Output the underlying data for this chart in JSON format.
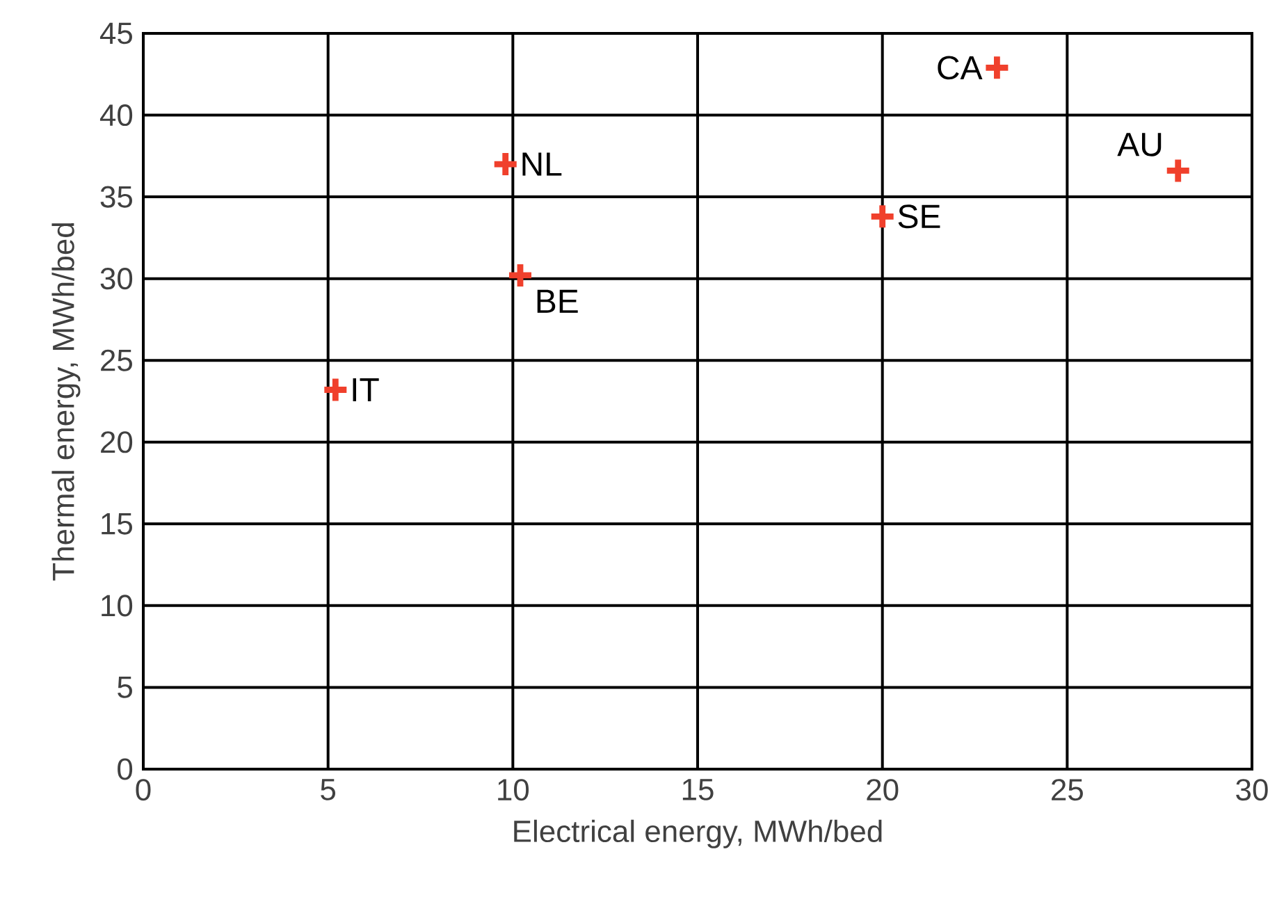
{
  "chart_data": {
    "type": "scatter",
    "xlabel": "Electrical energy, MWh/bed",
    "ylabel": "Thermal energy, MWh/bed",
    "x": [
      5.2,
      9.8,
      10.2,
      20.0,
      23.1,
      28.0
    ],
    "values": [
      23.2,
      37.0,
      30.2,
      33.8,
      42.9,
      36.6
    ],
    "color": "#f0402c",
    "marker": "cross",
    "grid": true,
    "xlim": [
      0,
      30
    ],
    "ylim": [
      0,
      45
    ],
    "xticks": [
      0,
      5,
      10,
      15,
      20,
      25,
      30
    ],
    "yticks": [
      0,
      5,
      10,
      15,
      20,
      25,
      30,
      35,
      40,
      45
    ],
    "annotations": [
      {
        "text": "IT",
        "x": 5.2,
        "y": 23.2
      },
      {
        "text": "NL",
        "x": 9.8,
        "y": 37.0
      },
      {
        "text": "BE",
        "x": 10.2,
        "y": 30.2
      },
      {
        "text": "SE",
        "x": 20.0,
        "y": 33.8
      },
      {
        "text": "CA",
        "x": 23.1,
        "y": 42.9
      },
      {
        "text": "AU",
        "x": 28.0,
        "y": 36.6
      }
    ]
  }
}
